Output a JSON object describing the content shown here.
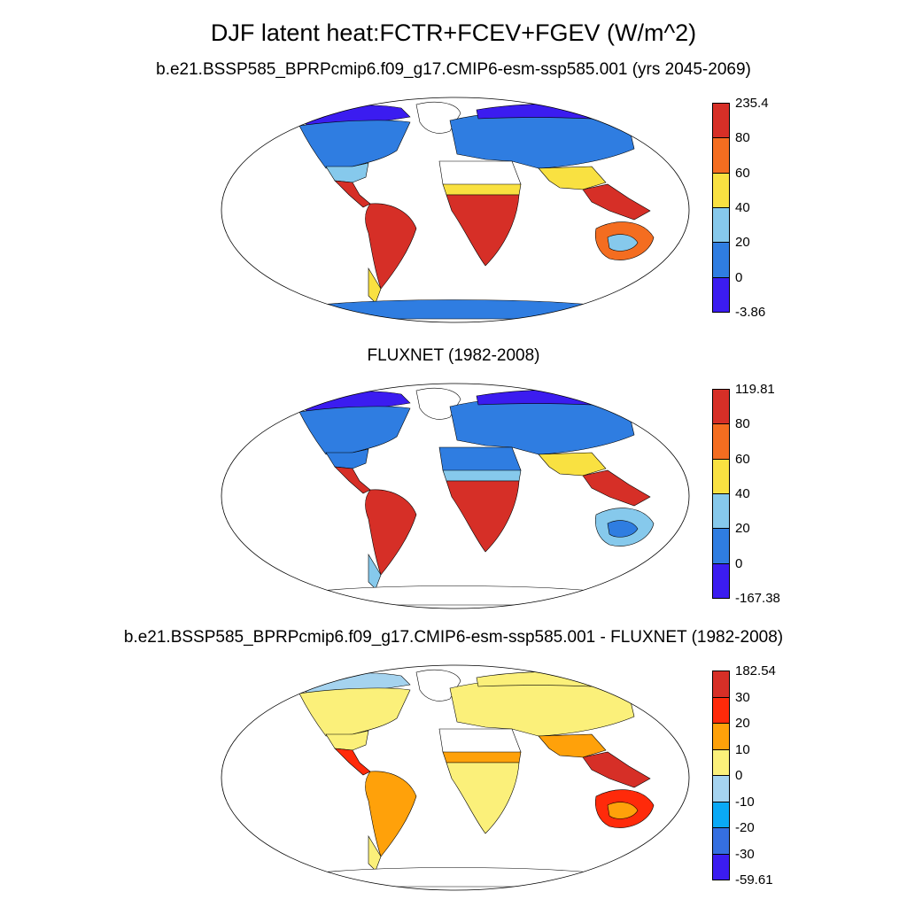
{
  "title": "DJF latent heat:FCTR+FCEV+FGEV (W/m^2)",
  "panels": [
    {
      "id": "model",
      "title": "b.e21.BSSP585_BPRPcmip6.f09_g17.CMIP6-esm-ssp585.001 (yrs 2045-2069)",
      "colorbar": {
        "labels": [
          "235.4",
          "80",
          "60",
          "40",
          "20",
          "0",
          "-3.86"
        ],
        "colors": [
          "#d62f27",
          "#f46d20",
          "#f9e141",
          "#86c9ec",
          "#2f7de1",
          "#3b1cf0"
        ]
      }
    },
    {
      "id": "obs",
      "title": "FLUXNET (1982-2008)",
      "colorbar": {
        "labels": [
          "119.81",
          "80",
          "60",
          "40",
          "20",
          "0",
          "-167.38"
        ],
        "colors": [
          "#d62f27",
          "#f46d20",
          "#f9e141",
          "#86c9ec",
          "#2f7de1",
          "#3b1cf0"
        ]
      }
    },
    {
      "id": "diff",
      "title": "b.e21.BSSP585_BPRPcmip6.f09_g17.CMIP6-esm-ssp585.001 - FLUXNET (1982-2008)",
      "colorbar": {
        "labels": [
          "182.54",
          "30",
          "20",
          "10",
          "0",
          "-10",
          "-20",
          "-30",
          "-59.61"
        ],
        "colors": [
          "#d62f27",
          "#ff2a0a",
          "#ffa10a",
          "#fbf07a",
          "#a5d3ef",
          "#0aa9f5",
          "#356fe0",
          "#3b1cf0"
        ]
      }
    }
  ],
  "regions": {
    "model": {
      "north_america_north": "#2f7de1",
      "north_america_arctic": "#3b1cf0",
      "north_america_south": "#86c9ec",
      "greenland": "#ffffff",
      "central_america": "#d62f27",
      "south_america": "#d62f27",
      "patagonia": "#f9e141",
      "europe_asia": "#2f7de1",
      "siberia_north": "#3b1cf0",
      "north_africa": "#ffffff",
      "africa_central": "#d62f27",
      "africa_sahel": "#f9e141",
      "south_asia": "#f9e141",
      "southeast_asia": "#d62f27",
      "australia": "#f46d20",
      "australia_interior": "#86c9ec",
      "antarctica": "#2f7de1"
    },
    "obs": {
      "north_america_north": "#2f7de1",
      "north_america_arctic": "#3b1cf0",
      "north_america_south": "#2f7de1",
      "greenland": "#ffffff",
      "central_america": "#d62f27",
      "south_america": "#d62f27",
      "patagonia": "#86c9ec",
      "europe_asia": "#2f7de1",
      "siberia_north": "#3b1cf0",
      "north_africa": "#2f7de1",
      "africa_central": "#d62f27",
      "africa_sahel": "#86c9ec",
      "south_asia": "#f9e141",
      "southeast_asia": "#d62f27",
      "australia": "#86c9ec",
      "australia_interior": "#2f7de1",
      "antarctica": "#ffffff"
    },
    "diff": {
      "north_america_north": "#fbf07a",
      "north_america_arctic": "#a5d3ef",
      "north_america_south": "#fbf07a",
      "greenland": "#ffffff",
      "central_america": "#ff2a0a",
      "south_america": "#ffa10a",
      "patagonia": "#fbf07a",
      "europe_asia": "#fbf07a",
      "siberia_north": "#fbf07a",
      "north_africa": "#ffffff",
      "africa_central": "#fbf07a",
      "africa_sahel": "#ffa10a",
      "south_asia": "#ffa10a",
      "southeast_asia": "#d62f27",
      "australia": "#ff2a0a",
      "australia_interior": "#ffa10a",
      "antarctica": "#ffffff"
    }
  }
}
